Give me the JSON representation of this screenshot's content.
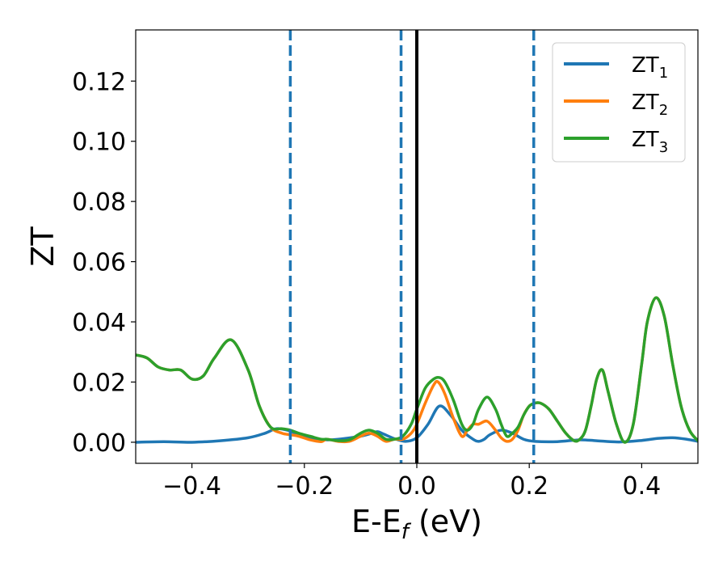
{
  "chart_data": {
    "type": "line",
    "xlabel": "E-E",
    "xlabel_sub": "f",
    "xlabel_unit": " (eV)",
    "ylabel": "ZT",
    "xlim": [
      -0.5,
      0.5
    ],
    "ylim": [
      -0.007,
      0.137
    ],
    "xticks": [
      -0.4,
      -0.2,
      0.0,
      0.2,
      0.4
    ],
    "xtick_labels": [
      "−0.4",
      "−0.2",
      "0.0",
      "0.2",
      "0.4"
    ],
    "yticks": [
      0.0,
      0.02,
      0.04,
      0.06,
      0.08,
      0.1,
      0.12
    ],
    "ytick_labels": [
      "0.00",
      "0.02",
      "0.04",
      "0.06",
      "0.08",
      "0.10",
      "0.12"
    ],
    "grid": false,
    "legend_position": "top-right",
    "colors": {
      "ZT1": "#1f77b4",
      "ZT2": "#ff7f0e",
      "ZT3": "#2ca02c",
      "fermi_line": "#000000",
      "dashed_lines": "#1f77b4"
    },
    "vlines_dashed": [
      -0.225,
      -0.028,
      0.208
    ],
    "vline_solid": 0.0,
    "series": [
      {
        "name": "ZT",
        "name_sub": "1",
        "color": "#1f77b4",
        "x": [
          -0.5,
          -0.45,
          -0.4,
          -0.35,
          -0.3,
          -0.27,
          -0.25,
          -0.23,
          -0.21,
          -0.19,
          -0.16,
          -0.13,
          -0.1,
          -0.08,
          -0.07,
          -0.06,
          -0.04,
          -0.02,
          0.0,
          0.02,
          0.04,
          0.06,
          0.08,
          0.1,
          0.11,
          0.12,
          0.13,
          0.15,
          0.17,
          0.19,
          0.21,
          0.25,
          0.29,
          0.32,
          0.36,
          0.4,
          0.43,
          0.455,
          0.48,
          0.5
        ],
        "y": [
          0.0,
          0.0002,
          0.0,
          0.0005,
          0.0015,
          0.003,
          0.0045,
          0.004,
          0.0025,
          0.0015,
          0.0008,
          0.0012,
          0.002,
          0.003,
          0.0035,
          0.0028,
          0.0012,
          0.0003,
          0.0015,
          0.006,
          0.012,
          0.009,
          0.004,
          0.001,
          0.0003,
          0.001,
          0.0025,
          0.004,
          0.003,
          0.001,
          0.0003,
          0.0002,
          0.0008,
          0.0005,
          0.0001,
          0.0006,
          0.0013,
          0.0015,
          0.001,
          0.0003
        ]
      },
      {
        "name": "ZT",
        "name_sub": "2",
        "color": "#ff7f0e",
        "x": [
          -0.5,
          -0.48,
          -0.46,
          -0.44,
          -0.42,
          -0.4,
          -0.38,
          -0.36,
          -0.33,
          -0.3,
          -0.28,
          -0.26,
          -0.24,
          -0.225,
          -0.21,
          -0.19,
          -0.17,
          -0.16,
          -0.14,
          -0.12,
          -0.1,
          -0.085,
          -0.07,
          -0.055,
          -0.04,
          -0.025,
          -0.01,
          0.0,
          0.015,
          0.03,
          0.038,
          0.05,
          0.065,
          0.08,
          0.09,
          0.1,
          0.11,
          0.125,
          0.14,
          0.15,
          0.16,
          0.17,
          0.18,
          0.19,
          0.2,
          0.21,
          0.22,
          0.235,
          0.25,
          0.265,
          0.28,
          0.29,
          0.3,
          0.31,
          0.32,
          0.33,
          0.34,
          0.355,
          0.37,
          0.385,
          0.4,
          0.41,
          0.425,
          0.44,
          0.455,
          0.47,
          0.485,
          0.5
        ],
        "y": [
          0.029,
          0.028,
          0.025,
          0.024,
          0.024,
          0.021,
          0.022,
          0.028,
          0.034,
          0.024,
          0.012,
          0.005,
          0.003,
          0.0025,
          0.002,
          0.0008,
          0.0002,
          0.001,
          0.0003,
          0.0003,
          0.002,
          0.003,
          0.002,
          0.0003,
          0.001,
          0.001,
          0.003,
          0.006,
          0.013,
          0.019,
          0.02,
          0.016,
          0.008,
          0.002,
          0.004,
          0.006,
          0.006,
          0.007,
          0.004,
          0.0015,
          0.0003,
          0.001,
          0.004,
          0.009,
          0.012,
          0.013,
          0.013,
          0.011,
          0.007,
          0.003,
          0.0005,
          0.001,
          0.004,
          0.012,
          0.021,
          0.024,
          0.017,
          0.006,
          0.0,
          0.006,
          0.026,
          0.04,
          0.048,
          0.042,
          0.026,
          0.012,
          0.004,
          0.0005
        ]
      },
      {
        "name": "ZT",
        "name_sub": "3",
        "color": "#2ca02c",
        "x": [
          -0.5,
          -0.48,
          -0.46,
          -0.44,
          -0.42,
          -0.4,
          -0.38,
          -0.36,
          -0.33,
          -0.3,
          -0.28,
          -0.26,
          -0.24,
          -0.225,
          -0.21,
          -0.19,
          -0.17,
          -0.16,
          -0.14,
          -0.12,
          -0.1,
          -0.085,
          -0.07,
          -0.055,
          -0.04,
          -0.025,
          -0.01,
          0.0,
          0.015,
          0.03,
          0.04,
          0.05,
          0.065,
          0.08,
          0.09,
          0.1,
          0.11,
          0.125,
          0.14,
          0.15,
          0.16,
          0.17,
          0.18,
          0.19,
          0.2,
          0.21,
          0.22,
          0.235,
          0.25,
          0.265,
          0.28,
          0.29,
          0.3,
          0.31,
          0.32,
          0.33,
          0.34,
          0.355,
          0.37,
          0.385,
          0.4,
          0.41,
          0.425,
          0.44,
          0.455,
          0.47,
          0.485,
          0.5
        ],
        "y": [
          0.029,
          0.028,
          0.025,
          0.024,
          0.024,
          0.021,
          0.022,
          0.028,
          0.034,
          0.024,
          0.012,
          0.005,
          0.0045,
          0.004,
          0.003,
          0.002,
          0.001,
          0.001,
          0.0005,
          0.0008,
          0.003,
          0.004,
          0.003,
          0.001,
          0.001,
          0.002,
          0.006,
          0.011,
          0.018,
          0.021,
          0.0215,
          0.02,
          0.014,
          0.006,
          0.004,
          0.006,
          0.011,
          0.015,
          0.011,
          0.006,
          0.002,
          0.003,
          0.005,
          0.009,
          0.012,
          0.013,
          0.013,
          0.011,
          0.007,
          0.003,
          0.0005,
          0.001,
          0.004,
          0.012,
          0.021,
          0.024,
          0.017,
          0.006,
          0.0,
          0.006,
          0.026,
          0.04,
          0.048,
          0.042,
          0.026,
          0.012,
          0.004,
          0.0005
        ]
      }
    ]
  }
}
